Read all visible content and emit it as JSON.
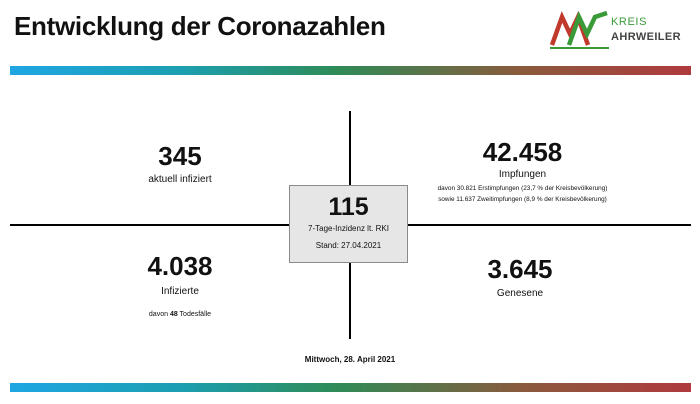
{
  "header": {
    "title": "Entwicklung der Coronazahlen",
    "logo": {
      "icon": "aw-logo-icon",
      "line1": "KREIS",
      "line2": "AHRWEILER",
      "colors": {
        "green": "#3a9a3a",
        "red": "#c0392b"
      }
    }
  },
  "band_colors": [
    "#1fa6e3",
    "#2e8b57",
    "#b03a3e"
  ],
  "stats": {
    "infected": {
      "value": "345",
      "label": "aktuell infiziert"
    },
    "vaccinations": {
      "value": "42.458",
      "label": "Impfungen",
      "detail1": "davon 30.821 Erstimpfungen (23,7 % der Kreisbevölkerung)",
      "detail2": "sowie 11.637 Zweitimpfungen (8,9 % der Kreisbevölkerung)"
    },
    "total": {
      "value": "4.038",
      "label": "Infizierte",
      "deaths_prefix": "davon ",
      "deaths_count": "48",
      "deaths_suffix": " Todesfälle"
    },
    "recovered": {
      "value": "3.645",
      "label": "Genesene"
    },
    "incidence": {
      "value": "115",
      "label": "7-Tage-Inzidenz lt. RKI",
      "date": "Stand: 27.04.2021"
    }
  },
  "footer": {
    "date": "Mittwoch, 28. April 2021"
  }
}
